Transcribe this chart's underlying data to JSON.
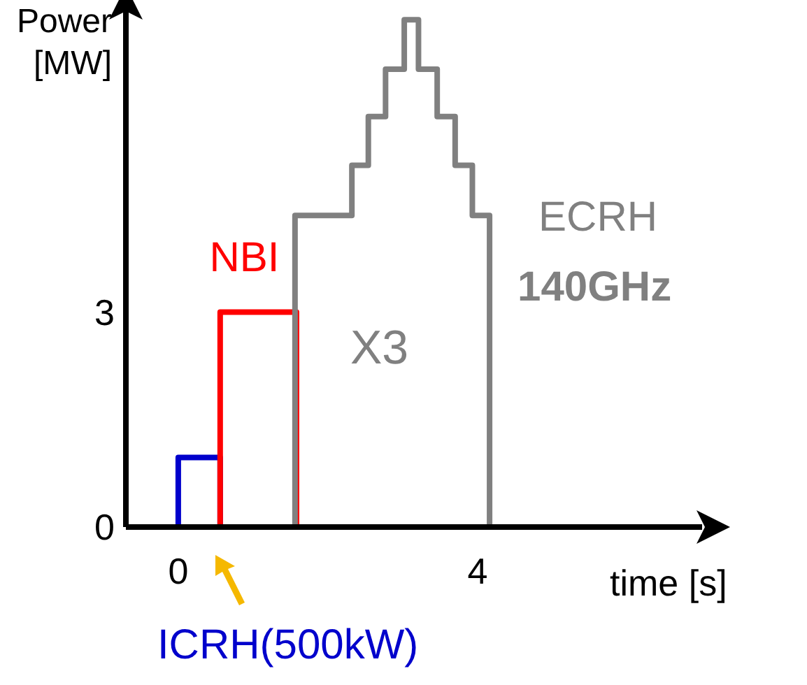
{
  "chart_data": {
    "type": "step",
    "xlabel": "time [s]",
    "ylabel": "Power [MW]",
    "xlim": [
      -0.7,
      7
    ],
    "ylim": [
      0,
      7.2
    ],
    "xticks": [
      0,
      4
    ],
    "yticks": [
      0,
      3
    ],
    "marker": "none",
    "line_style": "solid",
    "series": [
      {
        "name": "ICRH(500kW)",
        "color": "#0000cc",
        "x": [
          0,
          0,
          0.56
        ],
        "values": [
          0,
          0.97,
          0
        ]
      },
      {
        "name": "NBI",
        "color": "#ff0000",
        "x": [
          0.56,
          0.56,
          1.58
        ],
        "values": [
          0,
          3,
          0
        ]
      },
      {
        "name": "ECRH",
        "color": "#808080",
        "x": [
          1.56,
          1.56,
          2.32,
          2.54,
          2.77,
          3.02,
          3.21,
          3.46,
          3.7,
          3.93,
          4.16
        ],
        "values": [
          0,
          4.35,
          5.05,
          5.73,
          6.39,
          7.08,
          6.39,
          5.73,
          5.05,
          4.35,
          0
        ]
      }
    ],
    "annotations": [
      "140GHz",
      "X3"
    ]
  }
}
